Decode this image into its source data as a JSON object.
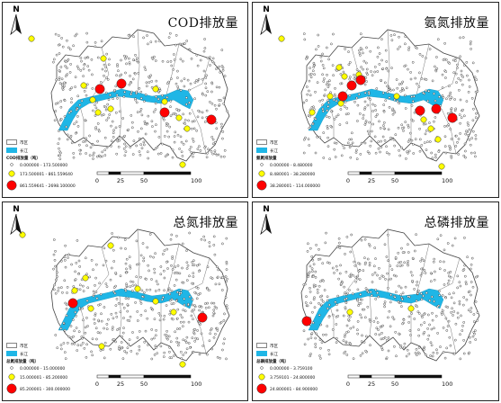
{
  "panels": [
    {
      "title": "COD排放量",
      "north": "N",
      "legend": {
        "boundary": "市区",
        "river": "长江",
        "header": "COD排放量（吨）",
        "classes": [
          "0.000000 - 173.500000",
          "173.500001 - 861.559640",
          "861.559641 - 2698.100000"
        ]
      },
      "scale": {
        "ticks": [
          "0",
          "25",
          "50",
          "100 km"
        ]
      }
    },
    {
      "title": "氨氮排放量",
      "north": "N",
      "legend": {
        "boundary": "市区",
        "river": "长江",
        "header": "氨氮排放量",
        "classes": [
          "0.000000 - 8.480000",
          "8.480001 - 38.280000",
          "38.280001 - 114.000000"
        ]
      },
      "scale": {
        "ticks": [
          "0",
          "25",
          "50",
          "100 km"
        ]
      }
    },
    {
      "title": "总氮排放量",
      "north": "N",
      "legend": {
        "boundary": "市区",
        "river": "长江",
        "header": "总氮排放量（吨）",
        "classes": [
          "0.000000 - 15.000000",
          "15.000001 - 85.200000",
          "85.200001 - 300.000000"
        ]
      },
      "scale": {
        "ticks": [
          "0",
          "25",
          "50",
          "100 km"
        ]
      }
    },
    {
      "title": "总磷排放量",
      "north": "N",
      "legend": {
        "boundary": "市区",
        "river": "长江",
        "header": "总磷排放量（吨）",
        "classes": [
          "0.000000 - 3.759100",
          "3.759101 - 24.800000",
          "24.800001 - 84.900000"
        ]
      },
      "scale": {
        "ticks": [
          "0",
          "25",
          "50",
          "100 km"
        ]
      }
    }
  ],
  "colors": {
    "small": "#ffffff",
    "medium": "#ffff00",
    "large": "#ff0000",
    "river": "#1fb6e6",
    "boundary": "#444444"
  }
}
